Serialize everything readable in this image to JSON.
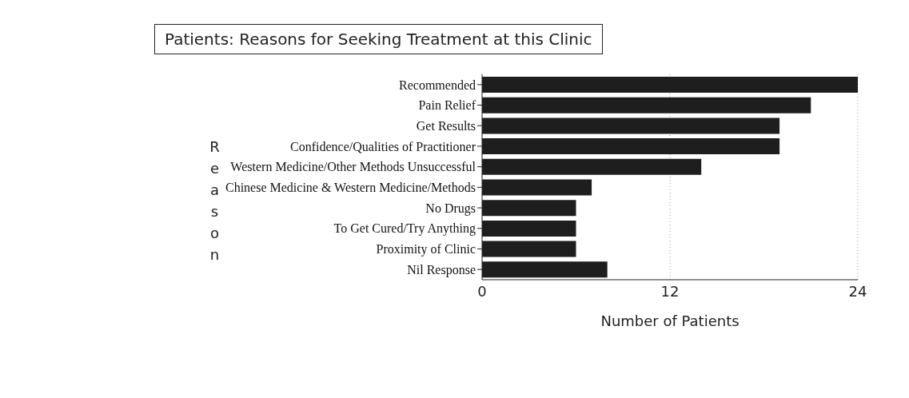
{
  "chart_data": {
    "type": "bar",
    "orientation": "horizontal",
    "title": "Patients: Reasons for Seeking Treatment at this Clinic",
    "xlabel": "Number of Patients",
    "ylabel": "Reason",
    "categories": [
      "Recommended",
      "Pain Relief",
      "Get Results",
      "Confidence/Qualities of Practitioner",
      "Western Medicine/Other Methods Unsuccessful",
      "Chinese Medicine & Western Medicine/Methods",
      "No Drugs",
      "To Get Cured/Try Anything",
      "Proximity of Clinic",
      "Nil Response"
    ],
    "values": [
      24,
      21,
      19,
      19,
      14,
      7,
      6,
      6,
      6,
      8
    ],
    "color": "#1e1e1e",
    "xlim": [
      0,
      24
    ],
    "xticks": [
      0,
      12,
      24
    ],
    "grid": "x"
  }
}
